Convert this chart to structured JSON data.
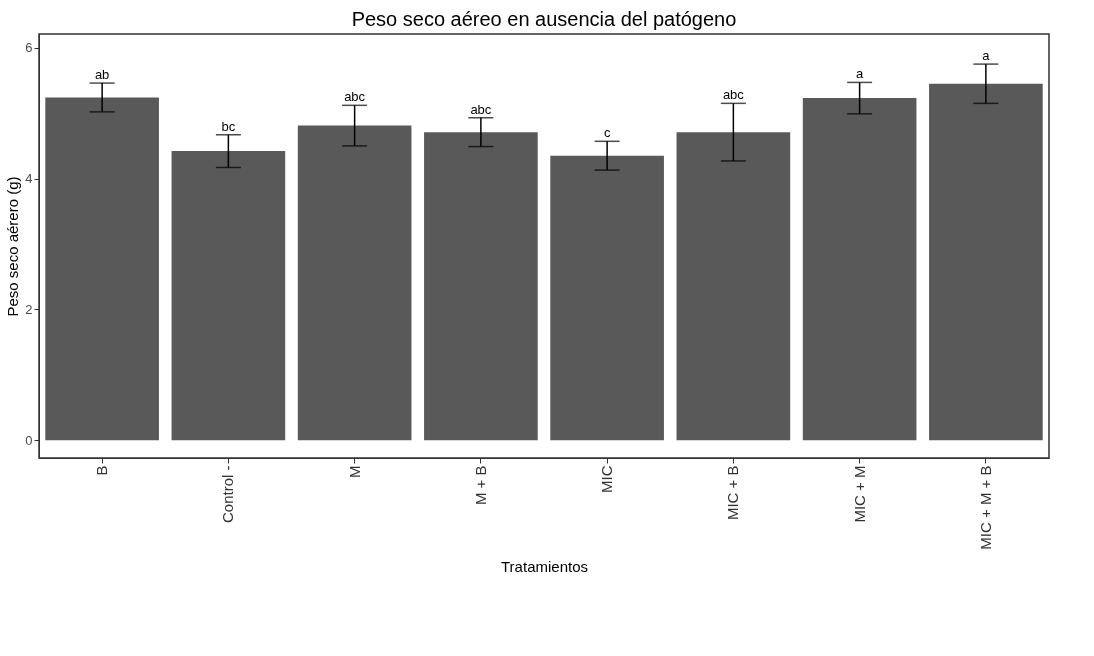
{
  "chart_data": {
    "type": "bar",
    "title": "Peso seco aéreo en ausencia del patógeno",
    "xlabel": "Tratamientos",
    "ylabel": "Peso seco aérero (g)",
    "categories": [
      "B",
      "Control -",
      "M",
      "M + B",
      "MIC",
      "MIC + B",
      "MIC + M",
      "MIC + M + B"
    ],
    "values": [
      5.24,
      4.42,
      4.81,
      4.71,
      4.35,
      4.71,
      5.23,
      5.45
    ],
    "errors": [
      0.22,
      0.25,
      0.31,
      0.22,
      0.22,
      0.44,
      0.24,
      0.3
    ],
    "color": "#595959",
    "ylim": [
      -0.27,
      6.21
    ],
    "yticks": [
      0,
      2,
      4,
      6
    ],
    "grid": false,
    "annotations": [
      {
        "text": "ab",
        "x": "B",
        "y": 5.46
      },
      {
        "text": "bc",
        "x": "Control -",
        "y": 4.67
      },
      {
        "text": "abc",
        "x": "M",
        "y": 5.12
      },
      {
        "text": "abc",
        "x": "M + B",
        "y": 4.93
      },
      {
        "text": "c",
        "x": "MIC",
        "y": 4.57
      },
      {
        "text": "abc",
        "x": "MIC + B",
        "y": 5.15
      },
      {
        "text": "a",
        "x": "MIC + M",
        "y": 5.47
      },
      {
        "text": "a",
        "x": "MIC + M + B",
        "y": 5.75
      }
    ]
  }
}
